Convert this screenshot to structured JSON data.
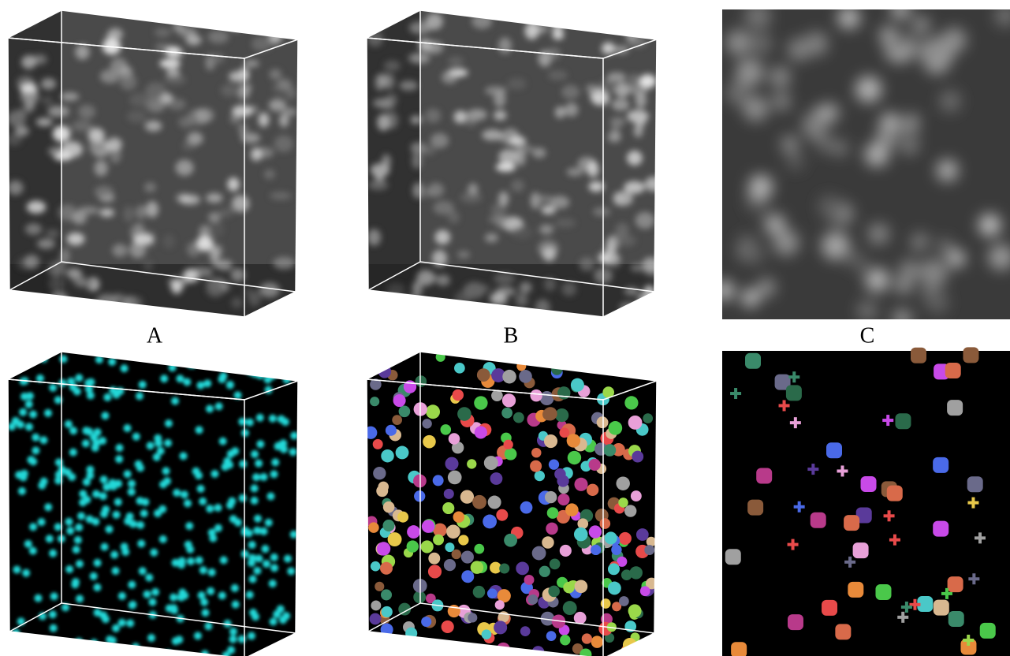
{
  "panels": {
    "labels": [
      "A",
      "B",
      "C"
    ]
  }
}
